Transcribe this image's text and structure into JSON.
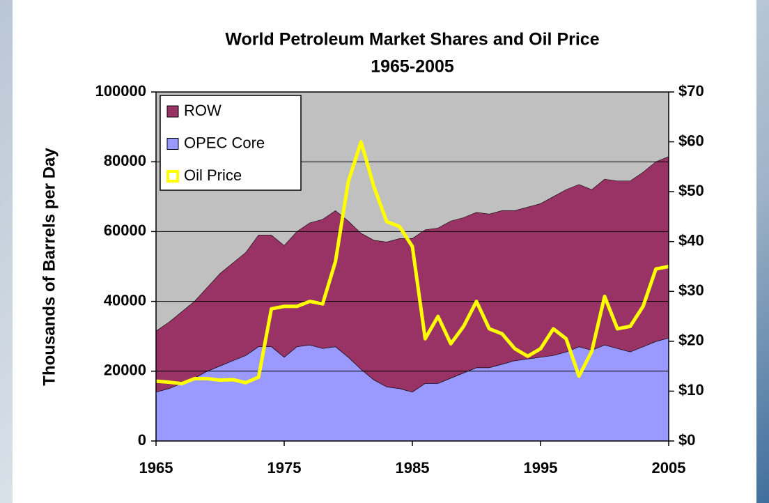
{
  "chart_data": {
    "type": "stacked_area_line",
    "title": "World Petroleum Market Shares and Oil Price",
    "subtitle": "1965-2005",
    "ylabel": "Thousands of Barrels per Day",
    "x": [
      1965,
      1966,
      1967,
      1968,
      1969,
      1970,
      1971,
      1972,
      1973,
      1974,
      1975,
      1976,
      1977,
      1978,
      1979,
      1980,
      1981,
      1982,
      1983,
      1984,
      1985,
      1986,
      1987,
      1988,
      1989,
      1990,
      1991,
      1992,
      1993,
      1994,
      1995,
      1996,
      1997,
      1998,
      1999,
      2000,
      2001,
      2002,
      2003,
      2004,
      2005
    ],
    "xlim": [
      1965,
      2005
    ],
    "xticks": [
      1965,
      1975,
      1985,
      1995,
      2005
    ],
    "ylim": [
      0,
      100000
    ],
    "yticks": [
      0,
      20000,
      40000,
      60000,
      80000,
      100000
    ],
    "y2lim": [
      0,
      70
    ],
    "y2ticks": [
      {
        "value": 0,
        "label": "$0"
      },
      {
        "value": 10,
        "label": "$10"
      },
      {
        "value": 20,
        "label": "$20"
      },
      {
        "value": 30,
        "label": "$30"
      },
      {
        "value": 40,
        "label": "$40"
      },
      {
        "value": 50,
        "label": "$50"
      },
      {
        "value": 60,
        "label": "$60"
      },
      {
        "value": 70,
        "label": "$70"
      }
    ],
    "grid": true,
    "legend": "top-left",
    "background": "#c0c0c0",
    "series": [
      {
        "name": "OPEC Core",
        "kind": "area",
        "color": "#9999ff",
        "values": [
          14000,
          15000,
          16500,
          18000,
          20000,
          21500,
          23000,
          24500,
          27000,
          27000,
          24000,
          27000,
          27500,
          26500,
          27000,
          24000,
          20500,
          17500,
          15500,
          15000,
          14000,
          16500,
          16500,
          18000,
          19500,
          21000,
          21000,
          22000,
          23000,
          23500,
          24000,
          24500,
          25500,
          27000,
          26000,
          27500,
          26500,
          25500,
          27000,
          28500,
          29500
        ]
      },
      {
        "name": "ROW",
        "kind": "area",
        "color": "#993366",
        "values": [
          17500,
          19000,
          20500,
          22000,
          24000,
          26500,
          28000,
          29500,
          32000,
          32000,
          32000,
          33000,
          35000,
          37000,
          39000,
          39000,
          39000,
          40000,
          41500,
          43000,
          44000,
          44000,
          44500,
          45000,
          44500,
          44500,
          44000,
          44000,
          43000,
          43500,
          44000,
          45500,
          46500,
          46500,
          46000,
          47500,
          48000,
          49000,
          50000,
          51500,
          52000
        ]
      },
      {
        "name": "Oil Price",
        "kind": "line",
        "axis": "y2",
        "color": "#ffff00",
        "values": [
          12,
          11.8,
          11.5,
          12.5,
          12.5,
          12.2,
          12.3,
          11.7,
          12.8,
          26.5,
          27,
          27,
          28,
          27.5,
          36,
          52,
          60,
          51,
          44,
          43,
          39,
          20.5,
          25,
          19.5,
          23,
          28,
          22.5,
          21.5,
          18.5,
          17,
          18.5,
          22.5,
          20.5,
          13,
          18,
          29,
          22.5,
          23,
          27,
          34.5,
          35
        ]
      }
    ]
  }
}
